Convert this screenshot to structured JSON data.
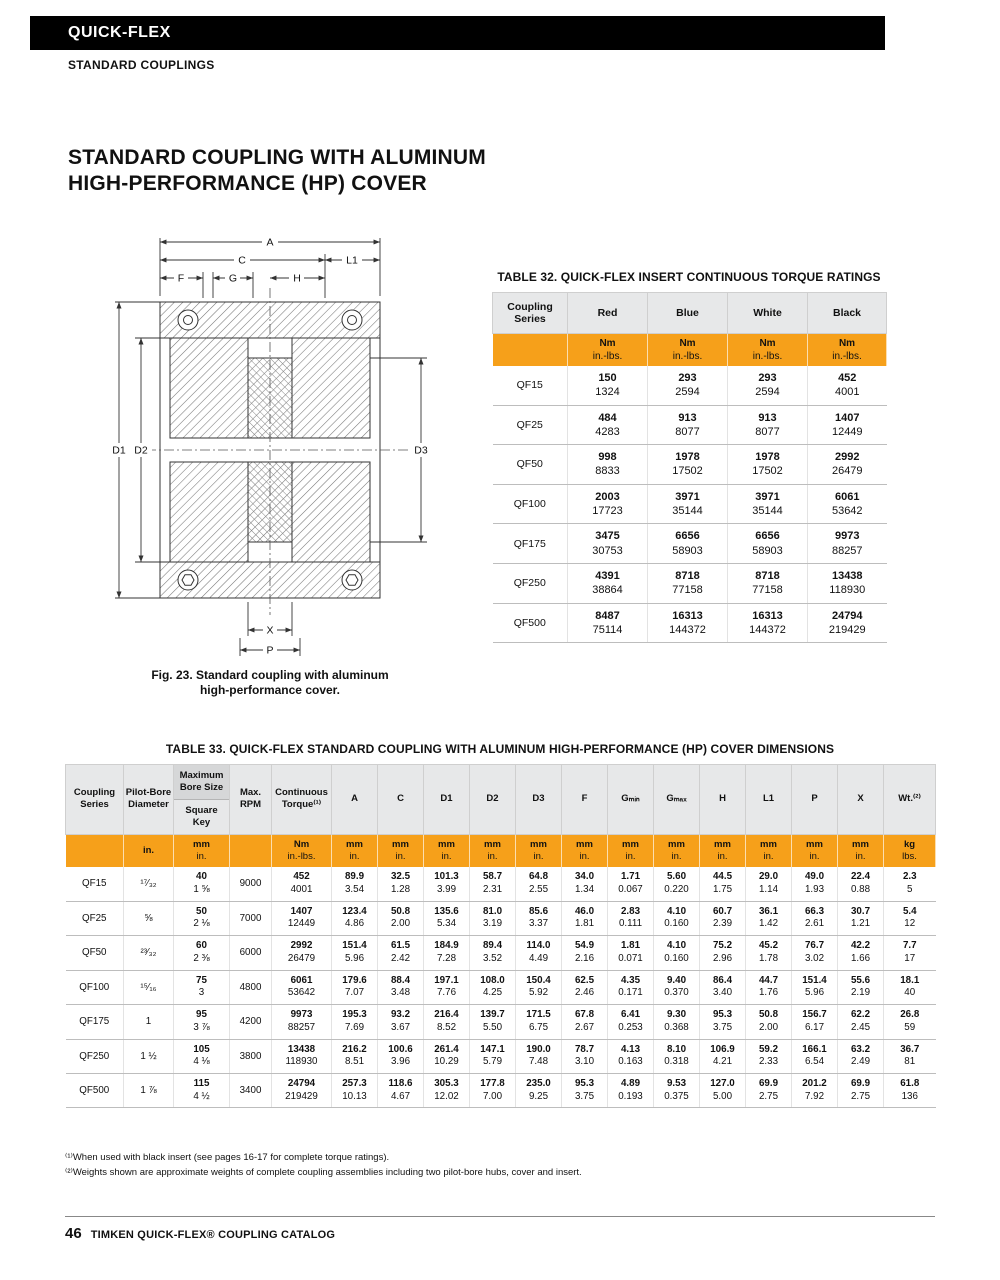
{
  "page": {
    "brand_header": "QUICK-FLEX",
    "sub_header": "STANDARD COUPLINGS",
    "title_line1": "STANDARD COUPLING WITH ALUMINUM",
    "title_line2": "HIGH-PERFORMANCE (HP) COVER"
  },
  "figure": {
    "caption_line1": "Fig. 23. Standard coupling with aluminum",
    "caption_line2": "high-performance cover.",
    "labels": {
      "A": "A",
      "C": "C",
      "L1": "L1",
      "F": "F",
      "G": "G",
      "H": "H",
      "D1": "D1",
      "D2": "D2",
      "D3": "D3",
      "X": "X",
      "P": "P"
    }
  },
  "table32": {
    "title": "TABLE 32. QUICK-FLEX INSERT CONTINUOUS TORQUE RATINGS",
    "col_headers": [
      "Coupling Series",
      "Red",
      "Blue",
      "White",
      "Black"
    ],
    "units": [
      "Nm",
      "in.-lbs."
    ],
    "rows": [
      {
        "series": "QF15",
        "values": [
          [
            "150",
            "1324"
          ],
          [
            "293",
            "2594"
          ],
          [
            "293",
            "2594"
          ],
          [
            "452",
            "4001"
          ]
        ]
      },
      {
        "series": "QF25",
        "values": [
          [
            "484",
            "4283"
          ],
          [
            "913",
            "8077"
          ],
          [
            "913",
            "8077"
          ],
          [
            "1407",
            "12449"
          ]
        ]
      },
      {
        "series": "QF50",
        "values": [
          [
            "998",
            "8833"
          ],
          [
            "1978",
            "17502"
          ],
          [
            "1978",
            "17502"
          ],
          [
            "2992",
            "26479"
          ]
        ]
      },
      {
        "series": "QF100",
        "values": [
          [
            "2003",
            "17723"
          ],
          [
            "3971",
            "35144"
          ],
          [
            "3971",
            "35144"
          ],
          [
            "6061",
            "53642"
          ]
        ]
      },
      {
        "series": "QF175",
        "values": [
          [
            "3475",
            "30753"
          ],
          [
            "6656",
            "58903"
          ],
          [
            "6656",
            "58903"
          ],
          [
            "9973",
            "88257"
          ]
        ]
      },
      {
        "series": "QF250",
        "values": [
          [
            "4391",
            "38864"
          ],
          [
            "8718",
            "77158"
          ],
          [
            "8718",
            "77158"
          ],
          [
            "13438",
            "118930"
          ]
        ]
      },
      {
        "series": "QF500",
        "values": [
          [
            "8487",
            "75114"
          ],
          [
            "16313",
            "144372"
          ],
          [
            "16313",
            "144372"
          ],
          [
            "24794",
            "219429"
          ]
        ]
      }
    ]
  },
  "table33": {
    "title": "TABLE 33. QUICK-FLEX STANDARD COUPLING WITH ALUMINUM HIGH-PERFORMANCE (HP) COVER DIMENSIONS",
    "headers": [
      "Coupling Series",
      "Pilot-Bore Diameter",
      {
        "top": "Maximum Bore Size",
        "bottom": "Square Key"
      },
      "Max. RPM",
      "Continuous Torque⁽¹⁾",
      "A",
      "C",
      "D1",
      "D2",
      "D3",
      "F",
      "Gₘᵢₙ",
      "Gₘₐₓ",
      "H",
      "L1",
      "P",
      "X",
      "Wt.⁽²⁾"
    ],
    "units": [
      [
        "",
        ""
      ],
      [
        "in.",
        ""
      ],
      [
        "mm",
        "in."
      ],
      [
        "",
        ""
      ],
      [
        "Nm",
        "in.-lbs."
      ],
      [
        "mm",
        "in."
      ],
      [
        "mm",
        "in."
      ],
      [
        "mm",
        "in."
      ],
      [
        "mm",
        "in."
      ],
      [
        "mm",
        "in."
      ],
      [
        "mm",
        "in."
      ],
      [
        "mm",
        "in."
      ],
      [
        "mm",
        "in."
      ],
      [
        "mm",
        "in."
      ],
      [
        "mm",
        "in."
      ],
      [
        "mm",
        "in."
      ],
      [
        "mm",
        "in."
      ],
      [
        "kg",
        "lbs."
      ]
    ],
    "rows": [
      {
        "cells": [
          "QF15",
          "¹⁷⁄₃₂",
          [
            "40",
            "1 ⅝"
          ],
          "9000",
          [
            "452",
            "4001"
          ],
          [
            "89.9",
            "3.54"
          ],
          [
            "32.5",
            "1.28"
          ],
          [
            "101.3",
            "3.99"
          ],
          [
            "58.7",
            "2.31"
          ],
          [
            "64.8",
            "2.55"
          ],
          [
            "34.0",
            "1.34"
          ],
          [
            "1.71",
            "0.067"
          ],
          [
            "5.60",
            "0.220"
          ],
          [
            "44.5",
            "1.75"
          ],
          [
            "29.0",
            "1.14"
          ],
          [
            "49.0",
            "1.93"
          ],
          [
            "22.4",
            "0.88"
          ],
          [
            "2.3",
            "5"
          ]
        ]
      },
      {
        "cells": [
          "QF25",
          "⅝",
          [
            "50",
            "2 ⅛"
          ],
          "7000",
          [
            "1407",
            "12449"
          ],
          [
            "123.4",
            "4.86"
          ],
          [
            "50.8",
            "2.00"
          ],
          [
            "135.6",
            "5.34"
          ],
          [
            "81.0",
            "3.19"
          ],
          [
            "85.6",
            "3.37"
          ],
          [
            "46.0",
            "1.81"
          ],
          [
            "2.83",
            "0.111"
          ],
          [
            "4.10",
            "0.160"
          ],
          [
            "60.7",
            "2.39"
          ],
          [
            "36.1",
            "1.42"
          ],
          [
            "66.3",
            "2.61"
          ],
          [
            "30.7",
            "1.21"
          ],
          [
            "5.4",
            "12"
          ]
        ]
      },
      {
        "cells": [
          "QF50",
          "²³⁄₃₂",
          [
            "60",
            "2 ⅜"
          ],
          "6000",
          [
            "2992",
            "26479"
          ],
          [
            "151.4",
            "5.96"
          ],
          [
            "61.5",
            "2.42"
          ],
          [
            "184.9",
            "7.28"
          ],
          [
            "89.4",
            "3.52"
          ],
          [
            "114.0",
            "4.49"
          ],
          [
            "54.9",
            "2.16"
          ],
          [
            "1.81",
            "0.071"
          ],
          [
            "4.10",
            "0.160"
          ],
          [
            "75.2",
            "2.96"
          ],
          [
            "45.2",
            "1.78"
          ],
          [
            "76.7",
            "3.02"
          ],
          [
            "42.2",
            "1.66"
          ],
          [
            "7.7",
            "17"
          ]
        ]
      },
      {
        "cells": [
          "QF100",
          "¹⁵⁄₁₆",
          [
            "75",
            "3"
          ],
          "4800",
          [
            "6061",
            "53642"
          ],
          [
            "179.6",
            "7.07"
          ],
          [
            "88.4",
            "3.48"
          ],
          [
            "197.1",
            "7.76"
          ],
          [
            "108.0",
            "4.25"
          ],
          [
            "150.4",
            "5.92"
          ],
          [
            "62.5",
            "2.46"
          ],
          [
            "4.35",
            "0.171"
          ],
          [
            "9.40",
            "0.370"
          ],
          [
            "86.4",
            "3.40"
          ],
          [
            "44.7",
            "1.76"
          ],
          [
            "151.4",
            "5.96"
          ],
          [
            "55.6",
            "2.19"
          ],
          [
            "18.1",
            "40"
          ]
        ]
      },
      {
        "cells": [
          "QF175",
          "1",
          [
            "95",
            "3 ⅞"
          ],
          "4200",
          [
            "9973",
            "88257"
          ],
          [
            "195.3",
            "7.69"
          ],
          [
            "93.2",
            "3.67"
          ],
          [
            "216.4",
            "8.52"
          ],
          [
            "139.7",
            "5.50"
          ],
          [
            "171.5",
            "6.75"
          ],
          [
            "67.8",
            "2.67"
          ],
          [
            "6.41",
            "0.253"
          ],
          [
            "9.30",
            "0.368"
          ],
          [
            "95.3",
            "3.75"
          ],
          [
            "50.8",
            "2.00"
          ],
          [
            "156.7",
            "6.17"
          ],
          [
            "62.2",
            "2.45"
          ],
          [
            "26.8",
            "59"
          ]
        ]
      },
      {
        "cells": [
          "QF250",
          "1 ½",
          [
            "105",
            "4 ⅛"
          ],
          "3800",
          [
            "13438",
            "118930"
          ],
          [
            "216.2",
            "8.51"
          ],
          [
            "100.6",
            "3.96"
          ],
          [
            "261.4",
            "10.29"
          ],
          [
            "147.1",
            "5.79"
          ],
          [
            "190.0",
            "7.48"
          ],
          [
            "78.7",
            "3.10"
          ],
          [
            "4.13",
            "0.163"
          ],
          [
            "8.10",
            "0.318"
          ],
          [
            "106.9",
            "4.21"
          ],
          [
            "59.2",
            "2.33"
          ],
          [
            "166.1",
            "6.54"
          ],
          [
            "63.2",
            "2.49"
          ],
          [
            "36.7",
            "81"
          ]
        ]
      },
      {
        "cells": [
          "QF500",
          "1 ⅞",
          [
            "115",
            "4 ½"
          ],
          "3400",
          [
            "24794",
            "219429"
          ],
          [
            "257.3",
            "10.13"
          ],
          [
            "118.6",
            "4.67"
          ],
          [
            "305.3",
            "12.02"
          ],
          [
            "177.8",
            "7.00"
          ],
          [
            "235.0",
            "9.25"
          ],
          [
            "95.3",
            "3.75"
          ],
          [
            "4.89",
            "0.193"
          ],
          [
            "9.53",
            "0.375"
          ],
          [
            "127.0",
            "5.00"
          ],
          [
            "69.9",
            "2.75"
          ],
          [
            "201.2",
            "7.92"
          ],
          [
            "69.9",
            "2.75"
          ],
          [
            "61.8",
            "136"
          ]
        ]
      }
    ]
  },
  "footnotes": {
    "note1": "⁽¹⁾When used with black insert (see pages 16-17 for complete torque ratings).",
    "note2": "⁽²⁾Weights shown are approximate weights of complete coupling assemblies including two pilot-bore hubs, cover and insert."
  },
  "footer": {
    "page_number": "46",
    "text": "TIMKEN QUICK-FLEX® COUPLING CATALOG"
  }
}
